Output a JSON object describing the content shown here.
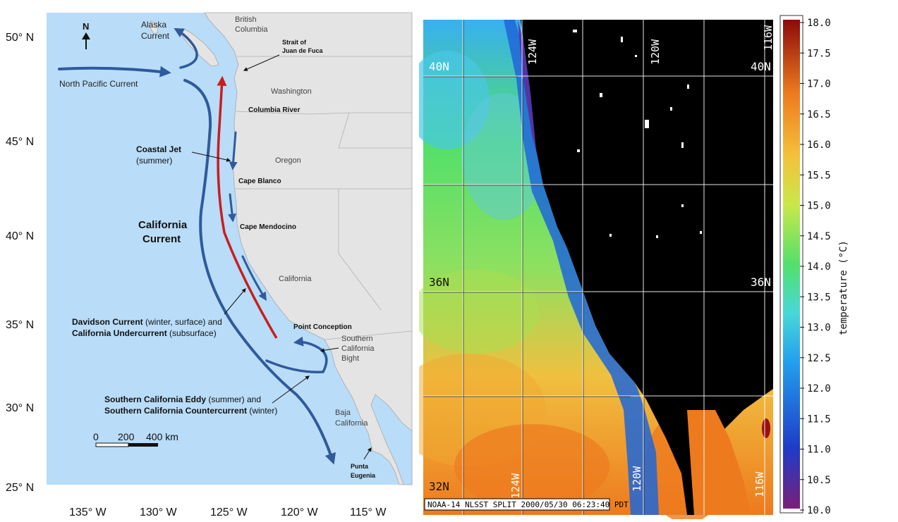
{
  "left_map": {
    "north_arrow": "N",
    "lat_labels": [
      "50° N",
      "45° N",
      "40° N",
      "35° N",
      "30° N",
      "25° N"
    ],
    "lon_labels": [
      "135° W",
      "130° W",
      "125° W",
      "120° W",
      "115° W"
    ],
    "places": {
      "british_columbia": [
        "British",
        "Columbia"
      ],
      "washington": "Washington",
      "oregon": "Oregon",
      "california": "California",
      "baja": [
        "Baja",
        "California"
      ],
      "scb": [
        "Southern",
        "California",
        "Bight"
      ]
    },
    "features": {
      "juan_de_fuca": [
        "Strait of",
        "Juan de Fuca"
      ],
      "columbia_river": "Columbia River",
      "cape_blanco": "Cape Blanco",
      "cape_mendocino": "Cape Mendocino",
      "point_conception": "Point Conception",
      "punta_eugenia": [
        "Punta",
        "Eugenia"
      ]
    },
    "currents": {
      "alaska": [
        "Alaska",
        "Current"
      ],
      "north_pacific": "North Pacific Current",
      "coastal_jet_bold": "Coastal Jet",
      "coastal_jet_note": "(summer)",
      "california_current": [
        "California",
        "Current"
      ],
      "davidson_bold": "Davidson Current",
      "davidson_note": " (winter, surface) and",
      "undercurrent_bold": "California Undercurrent",
      "undercurrent_note": " (subsurface)",
      "eddy_bold": "Southern California Eddy",
      "eddy_note": " (summer) and",
      "countercurrent_bold": "Southern California Countercurrent",
      "countercurrent_note": " (winter)"
    },
    "scale_bar": [
      "0",
      "200",
      "400 km"
    ],
    "colors": {
      "ocean": "#b9dcf8",
      "land": "#e4e4e4",
      "current": "#2f5a9b",
      "undercurrent": "#c81e1e"
    }
  },
  "sst_map": {
    "grid_labels": {
      "lat_40": "40N",
      "lat_40_right": "40N",
      "lat_36": "36N",
      "lat_36_right": "36N",
      "lat_32": "32N",
      "lon_124_top": "124W",
      "lon_120_top": "120W",
      "lon_116_top": "116W",
      "lon_124_bottom": "124W",
      "lon_120_bottom": "120W",
      "lon_116_bottom": "116W"
    },
    "caption": "NOAA-14 NLSST SPLIT 2000/05/30 06:23:40 PDT"
  },
  "colorbar": {
    "title": "temperature (°C)",
    "ticks": [
      "18.0",
      "17.5",
      "17.0",
      "16.5",
      "16.0",
      "15.5",
      "15.0",
      "14.5",
      "14.0",
      "13.5",
      "13.0",
      "12.5",
      "12.0",
      "11.5",
      "11.0",
      "10.5",
      "10.0"
    ],
    "min": 10.0,
    "max": 18.0,
    "colors": [
      "#7a1f78",
      "#1e3cc8",
      "#22a0ee",
      "#48d8d8",
      "#52e06a",
      "#c8e84a",
      "#f4c23a",
      "#ee7a1e",
      "#8c0a0a"
    ]
  }
}
